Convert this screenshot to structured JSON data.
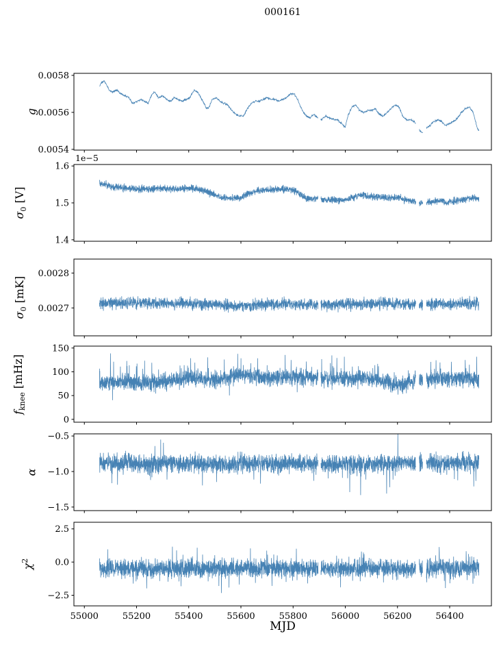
{
  "chart_data": {
    "type": "line",
    "title": "000161",
    "xlabel": "MJD",
    "line_color": "#4682b4",
    "background": "#ffffff",
    "xlim": [
      54960,
      56560
    ],
    "x_data_range": [
      55058,
      56512
    ],
    "x_ticks": [
      55000,
      55200,
      55400,
      55600,
      55800,
      56000,
      56200,
      56400
    ],
    "x_tick_labels": [
      "55000",
      "55200",
      "55400",
      "55600",
      "55800",
      "56000",
      "56200",
      "56400"
    ],
    "gaps": [
      [
        55896,
        55906
      ],
      [
        56270,
        56283
      ],
      [
        56297,
        56311
      ]
    ],
    "panels": [
      {
        "id": "g",
        "ylabel_segments": [
          {
            "t": "g",
            "k": "i"
          }
        ],
        "ylim": [
          0.005396,
          0.005811
        ],
        "y_ticks": [
          0.0054,
          0.0056,
          0.0058
        ],
        "y_tick_labels": [
          "0.0054",
          "0.0056",
          "0.0058"
        ],
        "noise": 8e-06,
        "points": 1500,
        "trend": [
          [
            55058,
            0.00574
          ],
          [
            55065,
            0.00576
          ],
          [
            55075,
            0.00577
          ],
          [
            55085,
            0.00575
          ],
          [
            55095,
            0.00572
          ],
          [
            55110,
            0.00571
          ],
          [
            55125,
            0.00572
          ],
          [
            55140,
            0.0057
          ],
          [
            55155,
            0.00569
          ],
          [
            55170,
            0.00568
          ],
          [
            55185,
            0.00565
          ],
          [
            55200,
            0.00566
          ],
          [
            55215,
            0.00567
          ],
          [
            55230,
            0.00566
          ],
          [
            55245,
            0.00565
          ],
          [
            55260,
            0.0057
          ],
          [
            55270,
            0.00571
          ],
          [
            55285,
            0.00568
          ],
          [
            55300,
            0.00569
          ],
          [
            55315,
            0.00567
          ],
          [
            55330,
            0.00566
          ],
          [
            55345,
            0.00568
          ],
          [
            55360,
            0.00567
          ],
          [
            55375,
            0.00566
          ],
          [
            55390,
            0.00567
          ],
          [
            55405,
            0.00568
          ],
          [
            55420,
            0.00572
          ],
          [
            55435,
            0.00571
          ],
          [
            55450,
            0.00567
          ],
          [
            55465,
            0.00563
          ],
          [
            55475,
            0.00562
          ],
          [
            55490,
            0.00567
          ],
          [
            55505,
            0.00568
          ],
          [
            55520,
            0.00566
          ],
          [
            55535,
            0.00565
          ],
          [
            55550,
            0.00564
          ],
          [
            55565,
            0.00561
          ],
          [
            55580,
            0.00559
          ],
          [
            55595,
            0.00558
          ],
          [
            55610,
            0.00558
          ],
          [
            55625,
            0.00562
          ],
          [
            55640,
            0.00565
          ],
          [
            55655,
            0.00566
          ],
          [
            55670,
            0.00566
          ],
          [
            55685,
            0.00567
          ],
          [
            55700,
            0.00568
          ],
          [
            55715,
            0.00567
          ],
          [
            55730,
            0.00567
          ],
          [
            55745,
            0.00566
          ],
          [
            55760,
            0.00567
          ],
          [
            55775,
            0.00568
          ],
          [
            55790,
            0.0057
          ],
          [
            55805,
            0.0057
          ],
          [
            55820,
            0.00566
          ],
          [
            55835,
            0.00561
          ],
          [
            55850,
            0.00558
          ],
          [
            55865,
            0.00557
          ],
          [
            55880,
            0.00559
          ],
          [
            55895,
            0.00557
          ],
          [
            55910,
            0.00556
          ],
          [
            55925,
            0.00558
          ],
          [
            55940,
            0.00557
          ],
          [
            55955,
            0.00556
          ],
          [
            55970,
            0.00556
          ],
          [
            55985,
            0.00554
          ],
          [
            56000,
            0.00552
          ],
          [
            56010,
            0.00558
          ],
          [
            56025,
            0.00563
          ],
          [
            56040,
            0.00564
          ],
          [
            56055,
            0.00561
          ],
          [
            56070,
            0.0056
          ],
          [
            56085,
            0.00561
          ],
          [
            56100,
            0.00561
          ],
          [
            56115,
            0.00562
          ],
          [
            56130,
            0.00559
          ],
          [
            56145,
            0.00558
          ],
          [
            56160,
            0.0056
          ],
          [
            56175,
            0.00562
          ],
          [
            56190,
            0.00564
          ],
          [
            56205,
            0.00563
          ],
          [
            56220,
            0.00558
          ],
          [
            56235,
            0.00556
          ],
          [
            56250,
            0.00556
          ],
          [
            56265,
            0.00555
          ],
          [
            56280,
            0.00551
          ],
          [
            56295,
            0.00549
          ],
          [
            56310,
            0.00551
          ],
          [
            56325,
            0.00553
          ],
          [
            56340,
            0.00555
          ],
          [
            56355,
            0.00556
          ],
          [
            56370,
            0.00555
          ],
          [
            56385,
            0.00553
          ],
          [
            56400,
            0.00554
          ],
          [
            56415,
            0.00555
          ],
          [
            56430,
            0.00557
          ],
          [
            56445,
            0.0056
          ],
          [
            56460,
            0.00562
          ],
          [
            56475,
            0.00563
          ],
          [
            56490,
            0.0056
          ],
          [
            56505,
            0.00552
          ],
          [
            56512,
            0.0055
          ]
        ]
      },
      {
        "id": "sigma0v",
        "ylabel_segments": [
          {
            "t": "σ",
            "k": "i"
          },
          {
            "t": "0",
            "k": "sub"
          },
          {
            "t": " [V]",
            "k": "n"
          }
        ],
        "offset_text": "1e−5",
        "ylim": [
          1.396,
          1.604
        ],
        "y_ticks": [
          1.4,
          1.5,
          1.6
        ],
        "y_tick_labels": [
          "1.4",
          "1.5",
          "1.6"
        ],
        "noise": 0.014,
        "points": 2600,
        "trend": [
          [
            55058,
            1.551
          ],
          [
            55080,
            1.549
          ],
          [
            55110,
            1.545
          ],
          [
            55140,
            1.541
          ],
          [
            55170,
            1.539
          ],
          [
            55200,
            1.537
          ],
          [
            55230,
            1.538
          ],
          [
            55260,
            1.537
          ],
          [
            55290,
            1.539
          ],
          [
            55320,
            1.538
          ],
          [
            55350,
            1.537
          ],
          [
            55380,
            1.539
          ],
          [
            55410,
            1.54
          ],
          [
            55440,
            1.537
          ],
          [
            55470,
            1.531
          ],
          [
            55500,
            1.522
          ],
          [
            55530,
            1.514
          ],
          [
            55560,
            1.512
          ],
          [
            55590,
            1.514
          ],
          [
            55610,
            1.519
          ],
          [
            55640,
            1.528
          ],
          [
            55670,
            1.533
          ],
          [
            55700,
            1.536
          ],
          [
            55730,
            1.536
          ],
          [
            55760,
            1.537
          ],
          [
            55790,
            1.538
          ],
          [
            55810,
            1.533
          ],
          [
            55830,
            1.522
          ],
          [
            55850,
            1.512
          ],
          [
            55880,
            1.512
          ],
          [
            55910,
            1.509
          ],
          [
            55940,
            1.508
          ],
          [
            55970,
            1.507
          ],
          [
            56000,
            1.508
          ],
          [
            56030,
            1.516
          ],
          [
            56060,
            1.521
          ],
          [
            56090,
            1.519
          ],
          [
            56120,
            1.516
          ],
          [
            56150,
            1.515
          ],
          [
            56180,
            1.514
          ],
          [
            56210,
            1.512
          ],
          [
            56240,
            1.507
          ],
          [
            56270,
            1.503
          ],
          [
            56300,
            1.5
          ],
          [
            56330,
            1.503
          ],
          [
            56360,
            1.505
          ],
          [
            56390,
            1.503
          ],
          [
            56420,
            1.505
          ],
          [
            56450,
            1.509
          ],
          [
            56480,
            1.512
          ],
          [
            56512,
            1.514
          ]
        ]
      },
      {
        "id": "sigma0mk",
        "ylabel_segments": [
          {
            "t": "σ",
            "k": "i"
          },
          {
            "t": "0",
            "k": "sub"
          },
          {
            "t": " [mK]",
            "k": "n"
          }
        ],
        "ylim": [
          0.00262,
          0.00284
        ],
        "y_ticks": [
          0.0027,
          0.0028
        ],
        "y_tick_labels": [
          "0.0027",
          "0.0028"
        ],
        "noise": 2.5e-05,
        "points": 2600,
        "trend": [
          [
            55058,
            0.002713
          ],
          [
            55150,
            0.002714
          ],
          [
            55250,
            0.002712
          ],
          [
            55350,
            0.002713
          ],
          [
            55450,
            0.00271
          ],
          [
            55520,
            0.002707
          ],
          [
            55580,
            0.002704
          ],
          [
            55640,
            0.002707
          ],
          [
            55700,
            0.00271
          ],
          [
            55760,
            0.002712
          ],
          [
            55820,
            0.00271
          ],
          [
            55880,
            0.002707
          ],
          [
            55940,
            0.002709
          ],
          [
            56000,
            0.00271
          ],
          [
            56060,
            0.002712
          ],
          [
            56120,
            0.002713
          ],
          [
            56180,
            0.002712
          ],
          [
            56240,
            0.002711
          ],
          [
            56300,
            0.002709
          ],
          [
            56360,
            0.002711
          ],
          [
            56420,
            0.002712
          ],
          [
            56512,
            0.002713
          ]
        ]
      },
      {
        "id": "fknee",
        "ylabel_segments": [
          {
            "t": "f",
            "k": "i"
          },
          {
            "t": "knee",
            "k": "sub"
          },
          {
            "t": " [mHz]",
            "k": "n"
          }
        ],
        "ylim": [
          -6,
          154
        ],
        "y_ticks": [
          0,
          50,
          100,
          150
        ],
        "y_tick_labels": [
          "0",
          "50",
          "100",
          "150"
        ],
        "noise": 26,
        "spike": {
          "p": 0.03,
          "amp": 40,
          "dir": 1
        },
        "points": 2800,
        "trend": [
          [
            55058,
            76
          ],
          [
            55120,
            79
          ],
          [
            55180,
            77
          ],
          [
            55240,
            76
          ],
          [
            55300,
            79
          ],
          [
            55360,
            83
          ],
          [
            55420,
            86
          ],
          [
            55480,
            82
          ],
          [
            55540,
            86
          ],
          [
            55600,
            96
          ],
          [
            55640,
            92
          ],
          [
            55700,
            86
          ],
          [
            55760,
            88
          ],
          [
            55820,
            88
          ],
          [
            55880,
            86
          ],
          [
            55940,
            86
          ],
          [
            56000,
            86
          ],
          [
            56060,
            87
          ],
          [
            56120,
            84
          ],
          [
            56160,
            79
          ],
          [
            56200,
            72
          ],
          [
            56240,
            76
          ],
          [
            56280,
            84
          ],
          [
            56330,
            86
          ],
          [
            56380,
            86
          ],
          [
            56430,
            86
          ],
          [
            56480,
            86
          ],
          [
            56512,
            85
          ]
        ]
      },
      {
        "id": "alpha",
        "ylabel_segments": [
          {
            "t": "α",
            "k": "i"
          }
        ],
        "ylim": [
          -1.55,
          -0.47
        ],
        "y_ticks": [
          -1.5,
          -1.0,
          -0.5
        ],
        "y_tick_labels": [
          "−1.5",
          "−1.0",
          "−0.5"
        ],
        "noise": 0.19,
        "spike": {
          "p": 0.012,
          "amp": 0.35,
          "dir": -1
        },
        "points": 2800,
        "trend": [
          [
            55058,
            -0.88
          ],
          [
            55200,
            -0.89
          ],
          [
            55350,
            -0.88
          ],
          [
            55500,
            -0.9
          ],
          [
            55650,
            -0.89
          ],
          [
            55800,
            -0.89
          ],
          [
            55950,
            -0.9
          ],
          [
            56100,
            -0.89
          ],
          [
            56250,
            -0.88
          ],
          [
            56400,
            -0.88
          ],
          [
            56512,
            -0.87
          ]
        ]
      },
      {
        "id": "chi2",
        "ylabel_segments": [
          {
            "t": "χ",
            "k": "i"
          },
          {
            "t": "2",
            "k": "sup"
          }
        ],
        "ylim": [
          -3.3,
          3.0
        ],
        "y_ticks": [
          -2.5,
          0.0,
          2.5
        ],
        "y_tick_labels": [
          "−2.5",
          "0.0",
          "2.5"
        ],
        "noise": 1.0,
        "spike": {
          "p": 0.025,
          "amp": 1.4,
          "dir": 0
        },
        "points": 2800,
        "trend": [
          [
            55058,
            -0.5
          ],
          [
            55300,
            -0.5
          ],
          [
            55600,
            -0.45
          ],
          [
            55900,
            -0.5
          ],
          [
            56200,
            -0.5
          ],
          [
            56512,
            -0.45
          ]
        ]
      }
    ]
  }
}
